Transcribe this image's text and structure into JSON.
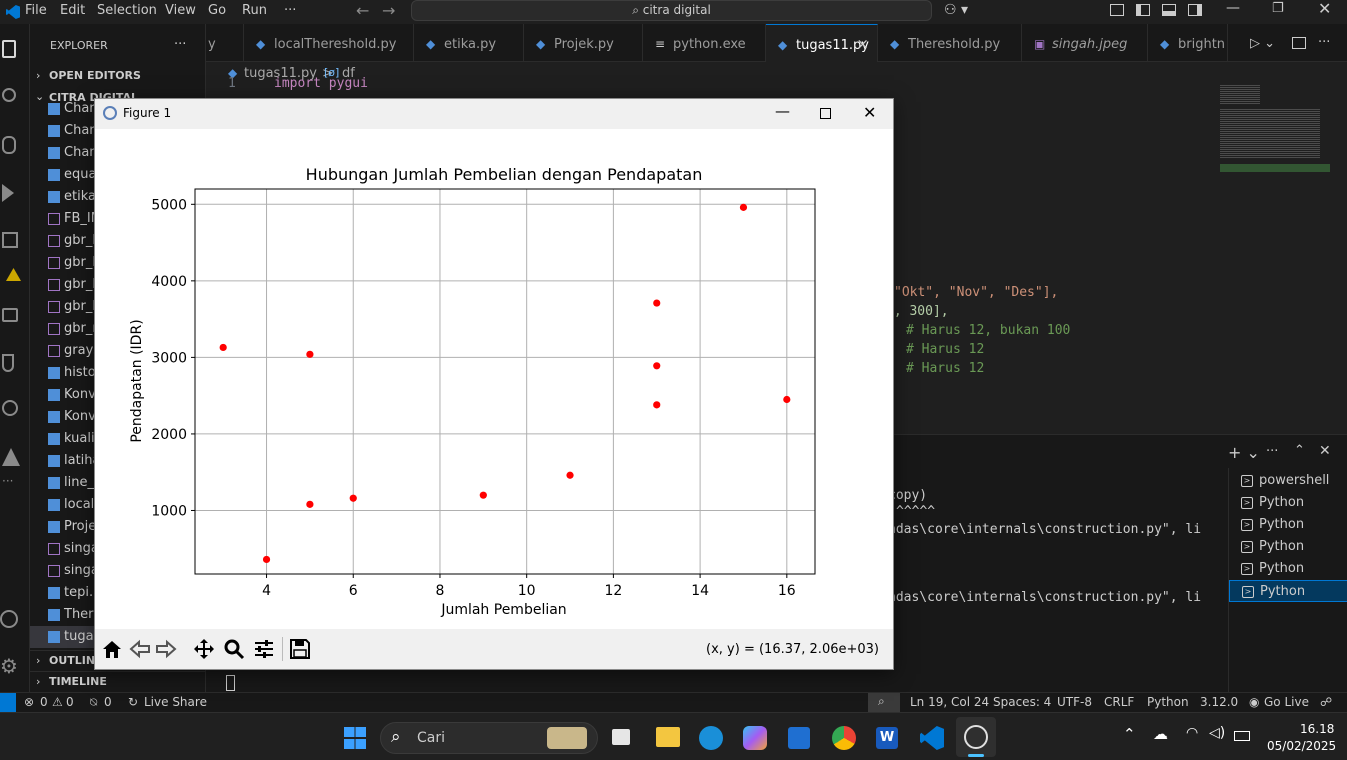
{
  "menu": {
    "file": "File",
    "edit": "Edit",
    "selection": "Selection",
    "view": "View",
    "go": "Go",
    "run": "Run",
    "more": "···"
  },
  "command_center": {
    "text": "citra digital"
  },
  "explorer": {
    "title": "EXPLORER",
    "more": "···",
    "open_editors": "OPEN EDITORS",
    "folder": "CITRA DIGITAL",
    "files": [
      "Chan",
      "Chan",
      "Chan",
      "equa",
      "etika.",
      "FB_IM",
      "gbr_b",
      "gbr_b",
      "gbr_b",
      "gbr_h",
      "gbr_n",
      "grays",
      "histo",
      "Konv",
      "Konv",
      "kualit",
      "latiha",
      "line_c",
      "local",
      "Proje",
      "singa",
      "singa",
      "tepi.p",
      "There",
      "tugas"
    ],
    "outline": "OUTLINE",
    "timeline": "TIMELINE"
  },
  "tabs": [
    {
      "label": "y",
      "icon": ""
    },
    {
      "label": "localThereshold.py",
      "icon": "python-icon"
    },
    {
      "label": "etika.py",
      "icon": "python-icon"
    },
    {
      "label": "Projek.py",
      "icon": "python-icon"
    },
    {
      "label": "python.exe",
      "icon": "file-icon"
    },
    {
      "label": "tugas11.py",
      "icon": "python-icon",
      "close": "×"
    },
    {
      "label": "Thereshold.py",
      "icon": "python-icon"
    },
    {
      "label": "singah.jpeg",
      "icon": "image-icon"
    },
    {
      "label": "brightn",
      "icon": "python-icon"
    }
  ],
  "breadcrumb": {
    "file": "tugas11.py",
    "sep": ">",
    "symbol_icon": "[ø]",
    "symbol": "df"
  },
  "editor": {
    "line1_num": "1",
    "line1_code": "import pygui",
    "line_a": "\"Okt\", \"Nov\", \"Des\"],",
    "line_b": "0, 300],",
    "line_c": "# Harus 12, bukan 100",
    "line_d": "# Harus 12",
    "line_e": "# Harus 12"
  },
  "terminal": {
    "line1": "copy)",
    "line2": "^^^^^",
    "line3": "ndas\\core\\internals\\construction.py\", li",
    "line4": "ndas\\core\\internals\\construction.py\", li",
    "list": [
      "powershell",
      "Python",
      "Python",
      "Python",
      "Python",
      "Python"
    ]
  },
  "statusbar": {
    "errors": "0",
    "warnings": "0",
    "ports": "0",
    "liveshare": "Live Share",
    "position": "Ln 19, Col 24",
    "spaces": "Spaces: 4",
    "encoding": "UTF-8",
    "eol": "CRLF",
    "language": "Python",
    "version": "3.12.0",
    "golive": "Go Live"
  },
  "taskbar": {
    "search_placeholder": "Cari",
    "time": "16.18",
    "date": "05/02/2025"
  },
  "figure": {
    "window_title": "Figure 1",
    "coords": "(x, y) = (16.37, 2.06e+03)"
  },
  "chart_data": {
    "type": "scatter",
    "title": "Hubungan Jumlah Pembelian dengan Pendapatan",
    "xlabel": "Jumlah Pembelian",
    "ylabel": "Pendapatan (IDR)",
    "xlim": [
      2.35,
      16.65
    ],
    "ylim": [
      170,
      5200
    ],
    "xticks": [
      4,
      6,
      8,
      10,
      12,
      14,
      16
    ],
    "yticks": [
      1000,
      2000,
      3000,
      4000,
      5000
    ],
    "grid": true,
    "color": "#ff0000",
    "points": [
      {
        "x": 3,
        "y": 3130
      },
      {
        "x": 4,
        "y": 360
      },
      {
        "x": 5,
        "y": 3040
      },
      {
        "x": 5,
        "y": 1080
      },
      {
        "x": 6,
        "y": 1160
      },
      {
        "x": 9,
        "y": 1200
      },
      {
        "x": 11,
        "y": 1460
      },
      {
        "x": 13,
        "y": 3710
      },
      {
        "x": 13,
        "y": 2890
      },
      {
        "x": 13,
        "y": 2380
      },
      {
        "x": 15,
        "y": 4960
      },
      {
        "x": 16,
        "y": 2450
      }
    ]
  }
}
